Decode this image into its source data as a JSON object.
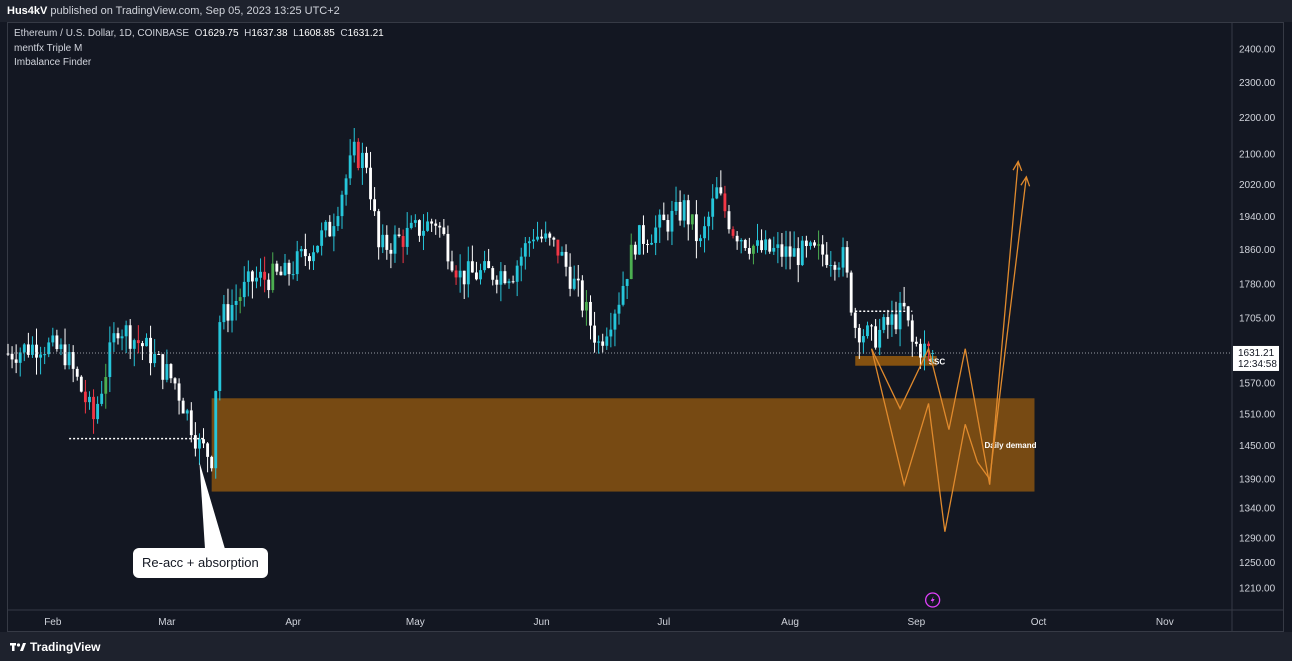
{
  "header": {
    "author": "Hus4kV",
    "published": "published on TradingView.com, Sep 05, 2023 13:25 UTC+2"
  },
  "legend": {
    "symbol": "Ethereum / U.S. Dollar, 1D, COINBASE",
    "open_key": "O",
    "open": "1629.75",
    "high_key": "H",
    "high": "1637.38",
    "low_key": "L",
    "low": "1608.85",
    "close_key": "C",
    "close": "1631.21",
    "indicators": [
      "mentfx Triple M",
      "Imbalance Finder"
    ]
  },
  "annotations": {
    "callout": "Re-acc + absorption",
    "demand_label": "Daily demand",
    "ssc_label": "SSC"
  },
  "price_tag": {
    "price": "1631.21",
    "countdown": "12:34:58",
    "color": "#ffffff"
  },
  "footer": {
    "brand": "TradingView"
  },
  "colors": {
    "background": "#131722",
    "up": "#26c6da",
    "down": "#ffffff",
    "bull_signal": "#4caf50",
    "bear_signal": "#f23645",
    "zone": "#8a5410",
    "projection": "#e08a2d",
    "grid_border": "#363a45"
  },
  "chart_data": {
    "type": "candlestick",
    "title": "",
    "y_axis": {
      "ticks": [
        2400,
        2300,
        2200,
        2100,
        2020,
        1940,
        1860,
        1780,
        1705,
        1570,
        1510,
        1450,
        1390,
        1340,
        1290,
        1250,
        1210
      ],
      "tick_labels": [
        "2400.00",
        "2300.00",
        "2200.00",
        "2100.00",
        "2020.00",
        "1940.00",
        "1860.00",
        "1780.00",
        "1705.00",
        "1570.00",
        "1510.00",
        "1450.00",
        "1390.00",
        "1340.00",
        "1290.00",
        "1250.00",
        "1210.00"
      ],
      "scale": "log",
      "range": [
        1180,
        2480
      ]
    },
    "x_axis": {
      "tick_labels": [
        "Feb",
        "Mar",
        "Apr",
        "May",
        "Jun",
        "Jul",
        "Aug",
        "Sep",
        "Oct",
        "Nov"
      ],
      "start_date": "2023-01-21",
      "end_date": "2023-11-17"
    },
    "last_price": 1631.21,
    "series_keypoints": [
      {
        "date": "2023-01-21",
        "price": 1630
      },
      {
        "date": "2023-01-29",
        "price": 1650
      },
      {
        "date": "2023-02-04",
        "price": 1630
      },
      {
        "date": "2023-02-11",
        "price": 1500
      },
      {
        "date": "2023-02-17",
        "price": 1690
      },
      {
        "date": "2023-02-24",
        "price": 1640
      },
      {
        "date": "2023-03-03",
        "price": 1570
      },
      {
        "date": "2023-03-09",
        "price": 1450
      },
      {
        "date": "2023-03-12",
        "price": 1430
      },
      {
        "date": "2023-03-14",
        "price": 1700
      },
      {
        "date": "2023-03-22",
        "price": 1790
      },
      {
        "date": "2023-03-30",
        "price": 1800
      },
      {
        "date": "2023-04-10",
        "price": 1910
      },
      {
        "date": "2023-04-16",
        "price": 2100
      },
      {
        "date": "2023-04-19",
        "price": 2080
      },
      {
        "date": "2023-04-22",
        "price": 1860
      },
      {
        "date": "2023-05-06",
        "price": 1930
      },
      {
        "date": "2023-05-12",
        "price": 1800
      },
      {
        "date": "2023-05-25",
        "price": 1810
      },
      {
        "date": "2023-05-30",
        "price": 1900
      },
      {
        "date": "2023-06-05",
        "price": 1860
      },
      {
        "date": "2023-06-10",
        "price": 1760
      },
      {
        "date": "2023-06-15",
        "price": 1650
      },
      {
        "date": "2023-06-20",
        "price": 1750
      },
      {
        "date": "2023-06-24",
        "price": 1880
      },
      {
        "date": "2023-07-01",
        "price": 1920
      },
      {
        "date": "2023-07-06",
        "price": 1960
      },
      {
        "date": "2023-07-10",
        "price": 1870
      },
      {
        "date": "2023-07-14",
        "price": 2000
      },
      {
        "date": "2023-07-18",
        "price": 1910
      },
      {
        "date": "2023-07-24",
        "price": 1860
      },
      {
        "date": "2023-08-01",
        "price": 1850
      },
      {
        "date": "2023-08-10",
        "price": 1850
      },
      {
        "date": "2023-08-14",
        "price": 1840
      },
      {
        "date": "2023-08-17",
        "price": 1690
      },
      {
        "date": "2023-08-21",
        "price": 1660
      },
      {
        "date": "2023-08-29",
        "price": 1720
      },
      {
        "date": "2023-08-31",
        "price": 1650
      },
      {
        "date": "2023-09-05",
        "price": 1631
      }
    ],
    "zones": [
      {
        "label": "Daily demand",
        "from_date": "2023-03-12",
        "to_date": "2023-09-30",
        "low": 1368,
        "high": 1540
      },
      {
        "label": "SSC",
        "from_date": "2023-08-17",
        "to_date": "2023-09-06",
        "low": 1605,
        "high": 1625
      }
    ],
    "projection_paths": [
      [
        {
          "date": "2023-08-21",
          "price": 1640
        },
        {
          "date": "2023-08-28",
          "price": 1520
        },
        {
          "date": "2023-09-04",
          "price": 1640
        },
        {
          "date": "2023-09-09",
          "price": 1480
        },
        {
          "date": "2023-09-13",
          "price": 1640
        },
        {
          "date": "2023-09-19",
          "price": 1380
        },
        {
          "date": "2023-09-26",
          "price": 2080
        }
      ],
      [
        {
          "date": "2023-08-21",
          "price": 1640
        },
        {
          "date": "2023-08-29",
          "price": 1380
        },
        {
          "date": "2023-09-04",
          "price": 1530
        },
        {
          "date": "2023-09-08",
          "price": 1300
        },
        {
          "date": "2023-09-13",
          "price": 1490
        },
        {
          "date": "2023-09-16",
          "price": 1420
        },
        {
          "date": "2023-09-19",
          "price": 1390
        },
        {
          "date": "2023-09-28",
          "price": 2040
        }
      ]
    ],
    "liquidity_lines": [
      {
        "from_date": "2023-02-05",
        "to_date": "2023-03-10",
        "price": 1463
      },
      {
        "from_date": "2023-08-17",
        "to_date": "2023-08-31",
        "price": 1720
      }
    ]
  }
}
